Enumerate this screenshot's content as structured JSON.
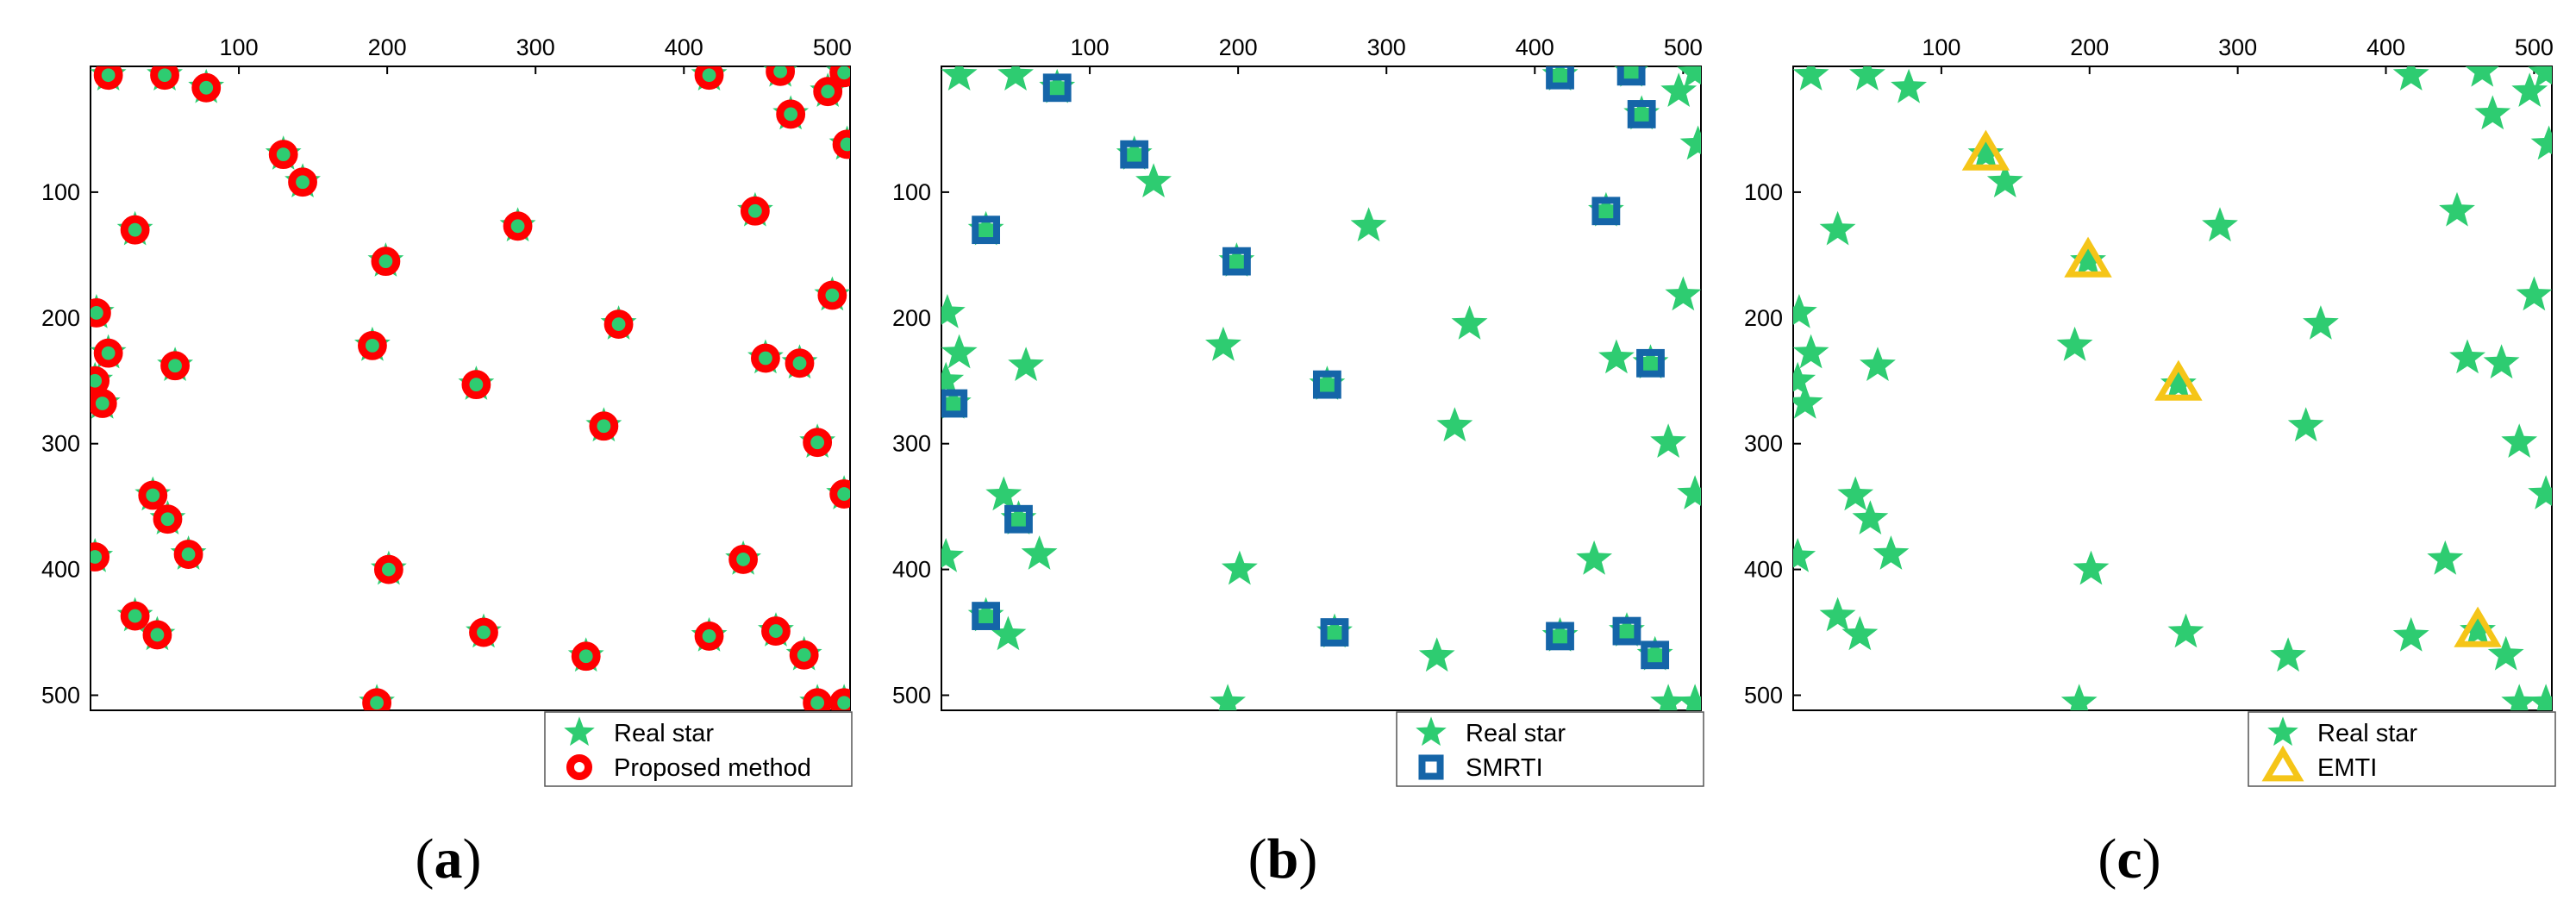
{
  "colors": {
    "real_star": "#2ecc71",
    "proposed_ring": "#ff0000",
    "smrti_square": "#1565a8",
    "emti_triangle": "#f5c518",
    "axis": "#000000"
  },
  "chart_data": [
    {
      "type": "scatter",
      "panel_label": "(a)",
      "x_ticks": [
        100,
        200,
        300,
        400,
        500
      ],
      "y_ticks": [
        100,
        200,
        300,
        400,
        500
      ],
      "xlim": [
        0,
        512
      ],
      "ylim": [
        0,
        512
      ],
      "y_inverted": true,
      "x_axis_position": "top",
      "legend_position": "bottom-right-outside",
      "series": [
        {
          "name": "Real star",
          "marker": "star",
          "points": [
            [
              12,
              7
            ],
            [
              50,
              7
            ],
            [
              78,
              17
            ],
            [
              130,
              70
            ],
            [
              143,
              92
            ],
            [
              30,
              130
            ],
            [
              199,
              155
            ],
            [
              288,
              127
            ],
            [
              417,
              7
            ],
            [
              465,
              4
            ],
            [
              472,
              38
            ],
            [
              497,
              20
            ],
            [
              508,
              5
            ],
            [
              510,
              62
            ],
            [
              448,
              115
            ],
            [
              4,
              196
            ],
            [
              12,
              228
            ],
            [
              3,
              250
            ],
            [
              8,
              268
            ],
            [
              57,
              238
            ],
            [
              190,
              222
            ],
            [
              260,
              253
            ],
            [
              356,
              205
            ],
            [
              455,
              232
            ],
            [
              478,
              236
            ],
            [
              500,
              182
            ],
            [
              346,
              286
            ],
            [
              490,
              299
            ],
            [
              508,
              340
            ],
            [
              42,
              341
            ],
            [
              52,
              360
            ],
            [
              66,
              388
            ],
            [
              3,
              390
            ],
            [
              201,
              400
            ],
            [
              440,
              392
            ],
            [
              30,
              437
            ],
            [
              45,
              452
            ],
            [
              265,
              450
            ],
            [
              334,
              469
            ],
            [
              417,
              453
            ],
            [
              462,
              449
            ],
            [
              481,
              468
            ],
            [
              193,
              506
            ],
            [
              490,
              506
            ],
            [
              508,
              506
            ]
          ]
        },
        {
          "name": "Proposed method",
          "marker": "circle",
          "points": [
            [
              12,
              7
            ],
            [
              50,
              7
            ],
            [
              78,
              17
            ],
            [
              130,
              70
            ],
            [
              143,
              92
            ],
            [
              30,
              130
            ],
            [
              199,
              155
            ],
            [
              288,
              127
            ],
            [
              417,
              7
            ],
            [
              465,
              4
            ],
            [
              472,
              38
            ],
            [
              497,
              20
            ],
            [
              508,
              5
            ],
            [
              510,
              62
            ],
            [
              448,
              115
            ],
            [
              4,
              196
            ],
            [
              12,
              228
            ],
            [
              3,
              250
            ],
            [
              8,
              268
            ],
            [
              57,
              238
            ],
            [
              190,
              222
            ],
            [
              260,
              253
            ],
            [
              356,
              205
            ],
            [
              455,
              232
            ],
            [
              478,
              236
            ],
            [
              500,
              182
            ],
            [
              346,
              286
            ],
            [
              490,
              299
            ],
            [
              508,
              340
            ],
            [
              42,
              341
            ],
            [
              52,
              360
            ],
            [
              66,
              388
            ],
            [
              3,
              390
            ],
            [
              201,
              400
            ],
            [
              440,
              392
            ],
            [
              30,
              437
            ],
            [
              45,
              452
            ],
            [
              265,
              450
            ],
            [
              334,
              469
            ],
            [
              417,
              453
            ],
            [
              462,
              449
            ],
            [
              481,
              468
            ],
            [
              193,
              506
            ],
            [
              490,
              506
            ],
            [
              508,
              506
            ]
          ]
        }
      ]
    },
    {
      "type": "scatter",
      "panel_label": "(b)",
      "x_ticks": [
        100,
        200,
        300,
        400,
        500
      ],
      "y_ticks": [
        100,
        200,
        300,
        400,
        500
      ],
      "xlim": [
        0,
        512
      ],
      "ylim": [
        0,
        512
      ],
      "y_inverted": true,
      "x_axis_position": "top",
      "legend_position": "bottom-right-outside",
      "series": [
        {
          "name": "Real star",
          "marker": "star",
          "points": [
            [
              12,
              7
            ],
            [
              50,
              7
            ],
            [
              78,
              17
            ],
            [
              130,
              70
            ],
            [
              143,
              92
            ],
            [
              30,
              130
            ],
            [
              199,
              155
            ],
            [
              288,
              127
            ],
            [
              417,
              7
            ],
            [
              465,
              4
            ],
            [
              472,
              38
            ],
            [
              497,
              20
            ],
            [
              508,
              5
            ],
            [
              510,
              62
            ],
            [
              448,
              115
            ],
            [
              4,
              196
            ],
            [
              12,
              228
            ],
            [
              3,
              250
            ],
            [
              8,
              268
            ],
            [
              57,
              238
            ],
            [
              190,
              222
            ],
            [
              260,
              253
            ],
            [
              356,
              205
            ],
            [
              455,
              232
            ],
            [
              478,
              236
            ],
            [
              500,
              182
            ],
            [
              346,
              286
            ],
            [
              490,
              299
            ],
            [
              508,
              340
            ],
            [
              42,
              341
            ],
            [
              52,
              360
            ],
            [
              66,
              388
            ],
            [
              3,
              390
            ],
            [
              201,
              400
            ],
            [
              440,
              392
            ],
            [
              30,
              437
            ],
            [
              45,
              452
            ],
            [
              265,
              450
            ],
            [
              334,
              469
            ],
            [
              417,
              453
            ],
            [
              462,
              449
            ],
            [
              481,
              468
            ],
            [
              193,
              506
            ],
            [
              490,
              506
            ],
            [
              508,
              506
            ]
          ]
        },
        {
          "name": "SMRTI",
          "marker": "square",
          "points": [
            [
              78,
              17
            ],
            [
              130,
              70
            ],
            [
              30,
              130
            ],
            [
              199,
              155
            ],
            [
              417,
              7
            ],
            [
              465,
              4
            ],
            [
              472,
              38
            ],
            [
              448,
              115
            ],
            [
              8,
              268
            ],
            [
              260,
              253
            ],
            [
              478,
              236
            ],
            [
              52,
              360
            ],
            [
              30,
              437
            ],
            [
              265,
              450
            ],
            [
              417,
              453
            ],
            [
              462,
              449
            ],
            [
              481,
              468
            ]
          ]
        }
      ]
    },
    {
      "type": "scatter",
      "panel_label": "(c)",
      "x_ticks": [
        100,
        200,
        300,
        400,
        500
      ],
      "y_ticks": [
        100,
        200,
        300,
        400,
        500
      ],
      "xlim": [
        0,
        512
      ],
      "ylim": [
        0,
        512
      ],
      "y_inverted": true,
      "x_axis_position": "top",
      "legend_position": "bottom-right-outside",
      "series": [
        {
          "name": "Real star",
          "marker": "star",
          "points": [
            [
              12,
              7
            ],
            [
              50,
              7
            ],
            [
              78,
              17
            ],
            [
              130,
              70
            ],
            [
              143,
              92
            ],
            [
              30,
              130
            ],
            [
              199,
              155
            ],
            [
              288,
              127
            ],
            [
              417,
              7
            ],
            [
              465,
              4
            ],
            [
              472,
              38
            ],
            [
              497,
              20
            ],
            [
              508,
              5
            ],
            [
              510,
              62
            ],
            [
              448,
              115
            ],
            [
              4,
              196
            ],
            [
              12,
              228
            ],
            [
              3,
              250
            ],
            [
              8,
              268
            ],
            [
              57,
              238
            ],
            [
              190,
              222
            ],
            [
              260,
              253
            ],
            [
              356,
              205
            ],
            [
              455,
              232
            ],
            [
              478,
              236
            ],
            [
              500,
              182
            ],
            [
              346,
              286
            ],
            [
              490,
              299
            ],
            [
              508,
              340
            ],
            [
              42,
              341
            ],
            [
              52,
              360
            ],
            [
              66,
              388
            ],
            [
              3,
              390
            ],
            [
              201,
              400
            ],
            [
              440,
              392
            ],
            [
              30,
              437
            ],
            [
              45,
              452
            ],
            [
              265,
              450
            ],
            [
              334,
              469
            ],
            [
              417,
              453
            ],
            [
              462,
              449
            ],
            [
              481,
              468
            ],
            [
              193,
              506
            ],
            [
              490,
              506
            ],
            [
              508,
              506
            ]
          ]
        },
        {
          "name": "EMTI",
          "marker": "triangle",
          "points": [
            [
              130,
              70
            ],
            [
              199,
              155
            ],
            [
              260,
              253
            ],
            [
              462,
              449
            ]
          ]
        }
      ]
    }
  ]
}
